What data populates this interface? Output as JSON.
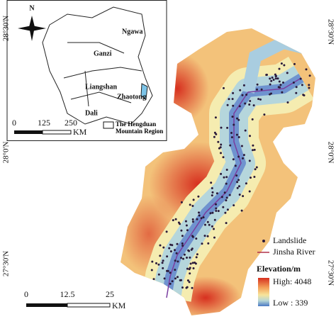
{
  "inset": {
    "north": "N",
    "regions": [
      "Ngawa",
      "Ganzi",
      "Liangshan",
      "Zhaotong",
      "Dali"
    ],
    "scale": {
      "ticks": [
        0,
        125,
        250
      ],
      "unit": "KM"
    },
    "legend": "The Hengduan Mountain Region"
  },
  "latitude_labels": {
    "left": [
      "28°30'N",
      "28°0'N",
      "27°30'N"
    ],
    "right": [
      "28°30'N",
      "28°0'N",
      "27°30'N"
    ]
  },
  "scale": {
    "ticks": [
      0,
      12.5,
      25
    ],
    "unit": "KM"
  },
  "legend": {
    "items": [
      "Landslide",
      "Jinsha River"
    ],
    "title": "Elevation/m",
    "high": "High: 4048",
    "low": "Low : 339"
  }
}
